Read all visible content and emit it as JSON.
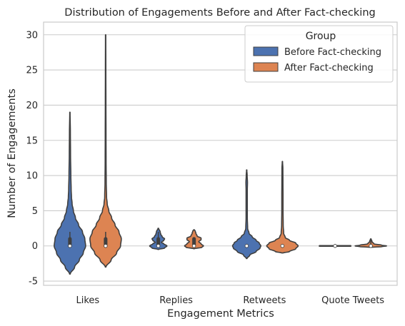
{
  "chart_data": {
    "type": "violin",
    "title": "Distribution of Engagements Before and After Fact-checking",
    "xlabel": "Engagement Metrics",
    "ylabel": "Number of Engagements",
    "ylim": [
      -5.6,
      31.8
    ],
    "yticks": [
      -5,
      0,
      5,
      10,
      15,
      20,
      25,
      30
    ],
    "categories": [
      "Likes",
      "Replies",
      "Retweets",
      "Quote Tweets"
    ],
    "grid": "horizontal",
    "legend": {
      "title": "Group",
      "placement": "top-right"
    },
    "series": [
      {
        "name": "Before Fact-checking",
        "color": "#4c72b0",
        "violins": [
          {
            "min": -4,
            "max": 19,
            "median": 0,
            "q1": 0,
            "q3": 1,
            "whisker_low": 0,
            "whisker_high": 2,
            "profile": [
              [
                -4,
                0.02
              ],
              [
                -3,
                0.3
              ],
              [
                -2,
                0.6
              ],
              [
                -1,
                0.85
              ],
              [
                0,
                1.0
              ],
              [
                1,
                0.95
              ],
              [
                2,
                0.8
              ],
              [
                3,
                0.55
              ],
              [
                4,
                0.35
              ],
              [
                5,
                0.22
              ],
              [
                6,
                0.14
              ],
              [
                7,
                0.1
              ],
              [
                8,
                0.08
              ],
              [
                10,
                0.06
              ],
              [
                13,
                0.04
              ],
              [
                16,
                0.03
              ],
              [
                19,
                0.01
              ]
            ]
          },
          {
            "min": -0.5,
            "max": 2.5,
            "median": 0,
            "q1": 0,
            "q3": 1,
            "whisker_low": 0,
            "whisker_high": 2,
            "profile": [
              [
                -0.5,
                0.02
              ],
              [
                -0.3,
                0.4
              ],
              [
                0,
                0.55
              ],
              [
                0.3,
                0.35
              ],
              [
                0.5,
                0.2
              ],
              [
                0.8,
                0.35
              ],
              [
                1.0,
                0.4
              ],
              [
                1.3,
                0.25
              ],
              [
                1.7,
                0.15
              ],
              [
                2.0,
                0.12
              ],
              [
                2.5,
                0.02
              ]
            ]
          },
          {
            "min": -1.8,
            "max": 10.8,
            "median": 0,
            "q1": 0,
            "q3": 0,
            "whisker_low": 0,
            "whisker_high": 0,
            "profile": [
              [
                -1.8,
                0.02
              ],
              [
                -1.3,
                0.2
              ],
              [
                -0.8,
                0.6
              ],
              [
                -0.3,
                0.85
              ],
              [
                0,
                0.9
              ],
              [
                0.4,
                0.8
              ],
              [
                0.8,
                0.6
              ],
              [
                1.3,
                0.35
              ],
              [
                1.8,
                0.15
              ],
              [
                2.5,
                0.06
              ],
              [
                4,
                0.04
              ],
              [
                6,
                0.04
              ],
              [
                8,
                0.04
              ],
              [
                9,
                0.05
              ],
              [
                10,
                0.03
              ],
              [
                10.8,
                0.01
              ]
            ]
          },
          {
            "min": -0.05,
            "max": 0.05,
            "median": 0,
            "q1": 0,
            "q3": 0,
            "whisker_low": 0,
            "whisker_high": 0,
            "profile": [
              [
                -0.05,
                1.0
              ],
              [
                0.05,
                1.0
              ]
            ]
          }
        ]
      },
      {
        "name": "After Fact-checking",
        "color": "#dd8452",
        "violins": [
          {
            "min": -3,
            "max": 30,
            "median": 0,
            "q1": 0,
            "q3": 1,
            "whisker_low": 0,
            "whisker_high": 2,
            "profile": [
              [
                -3,
                0.02
              ],
              [
                -2,
                0.35
              ],
              [
                -1,
                0.7
              ],
              [
                0,
                0.95
              ],
              [
                1,
                1.0
              ],
              [
                2,
                0.85
              ],
              [
                3,
                0.6
              ],
              [
                4,
                0.38
              ],
              [
                5,
                0.2
              ],
              [
                6,
                0.1
              ],
              [
                7,
                0.06
              ],
              [
                9,
                0.04
              ],
              [
                12,
                0.03
              ],
              [
                16,
                0.025
              ],
              [
                20,
                0.02
              ],
              [
                25,
                0.015
              ],
              [
                30,
                0.01
              ]
            ]
          },
          {
            "min": -0.4,
            "max": 2.3,
            "median": 0,
            "q1": 0,
            "q3": 1,
            "whisker_low": 0,
            "whisker_high": 1,
            "profile": [
              [
                -0.4,
                0.02
              ],
              [
                -0.2,
                0.5
              ],
              [
                0,
                0.6
              ],
              [
                0.3,
                0.45
              ],
              [
                0.6,
                0.3
              ],
              [
                0.9,
                0.45
              ],
              [
                1.1,
                0.45
              ],
              [
                1.4,
                0.2
              ],
              [
                1.8,
                0.12
              ],
              [
                2.1,
                0.08
              ],
              [
                2.3,
                0.02
              ]
            ]
          },
          {
            "min": -1,
            "max": 12,
            "median": 0,
            "q1": 0,
            "q3": 0,
            "whisker_low": 0,
            "whisker_high": 0,
            "profile": [
              [
                -1,
                0.05
              ],
              [
                -0.8,
                0.45
              ],
              [
                -0.4,
                0.85
              ],
              [
                0,
                1.0
              ],
              [
                0.4,
                0.85
              ],
              [
                0.8,
                0.45
              ],
              [
                1.2,
                0.18
              ],
              [
                1.8,
                0.08
              ],
              [
                3,
                0.05
              ],
              [
                5,
                0.04
              ],
              [
                7,
                0.04
              ],
              [
                9,
                0.035
              ],
              [
                11,
                0.03
              ],
              [
                12,
                0.01
              ]
            ]
          },
          {
            "min": -0.2,
            "max": 1.0,
            "median": 0,
            "q1": 0,
            "q3": 0,
            "whisker_low": 0,
            "whisker_high": 1,
            "profile": [
              [
                -0.2,
                0.02
              ],
              [
                -0.1,
                0.7
              ],
              [
                0,
                1.0
              ],
              [
                0.1,
                0.7
              ],
              [
                0.3,
                0.2
              ],
              [
                0.6,
                0.08
              ],
              [
                1.0,
                0.02
              ]
            ]
          }
        ]
      }
    ]
  }
}
